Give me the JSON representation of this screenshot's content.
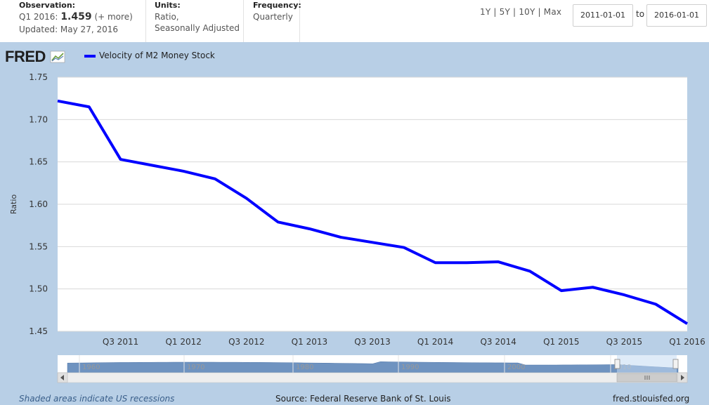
{
  "header": {
    "observation_label": "Observation:",
    "observation_period": "Q1 2016:",
    "observation_value": "1.459",
    "observation_more": "(+ more)",
    "updated": "Updated: May 27, 2016",
    "units_label": "Units:",
    "units_line1": "Ratio,",
    "units_line2": "Seasonally Adjusted",
    "frequency_label": "Frequency:",
    "frequency_value": "Quarterly",
    "range_1y": "1Y",
    "range_5y": "5Y",
    "range_10y": "10Y",
    "range_max": "Max",
    "range_sep": "|",
    "start_date": "2011-01-01",
    "to_label": "to",
    "end_date": "2016-01-01"
  },
  "logo": "FRED",
  "legend": "Velocity of M2 Money Stock",
  "footer": {
    "recessions": "Shaded areas indicate US recessions",
    "source": "Source: Federal Reserve Bank of St. Louis",
    "site": "fred.stlouisfed.org"
  },
  "colors": {
    "series": "#0000ff",
    "panel": "#b8cfe6",
    "navigator": "#6f93c0"
  },
  "chart_data": {
    "type": "line",
    "ylabel": "Ratio",
    "ylim": [
      1.45,
      1.75
    ],
    "yticks": [
      "1.75",
      "1.70",
      "1.65",
      "1.60",
      "1.55",
      "1.50",
      "1.45"
    ],
    "xticks": [
      "Q3 2011",
      "Q1 2012",
      "Q3 2012",
      "Q1 2013",
      "Q3 2013",
      "Q1 2014",
      "Q3 2014",
      "Q1 2015",
      "Q3 2015",
      "Q1 2016"
    ],
    "series": [
      {
        "name": "Velocity of M2 Money Stock",
        "x": [
          "Q1 2011",
          "Q2 2011",
          "Q3 2011",
          "Q4 2011",
          "Q1 2012",
          "Q2 2012",
          "Q3 2012",
          "Q4 2012",
          "Q1 2013",
          "Q2 2013",
          "Q3 2013",
          "Q4 2013",
          "Q1 2014",
          "Q2 2014",
          "Q3 2014",
          "Q4 2014",
          "Q1 2015",
          "Q2 2015",
          "Q3 2015",
          "Q4 2015",
          "Q1 2016"
        ],
        "values": [
          1.722,
          1.715,
          1.653,
          1.646,
          1.639,
          1.63,
          1.607,
          1.579,
          1.571,
          1.561,
          1.555,
          1.549,
          1.531,
          1.531,
          1.532,
          1.521,
          1.498,
          1.502,
          1.493,
          1.482,
          1.459
        ]
      }
    ],
    "navigator_ticks": [
      "1960",
      "1970",
      "1980",
      "1990",
      "2000",
      "2010"
    ]
  }
}
